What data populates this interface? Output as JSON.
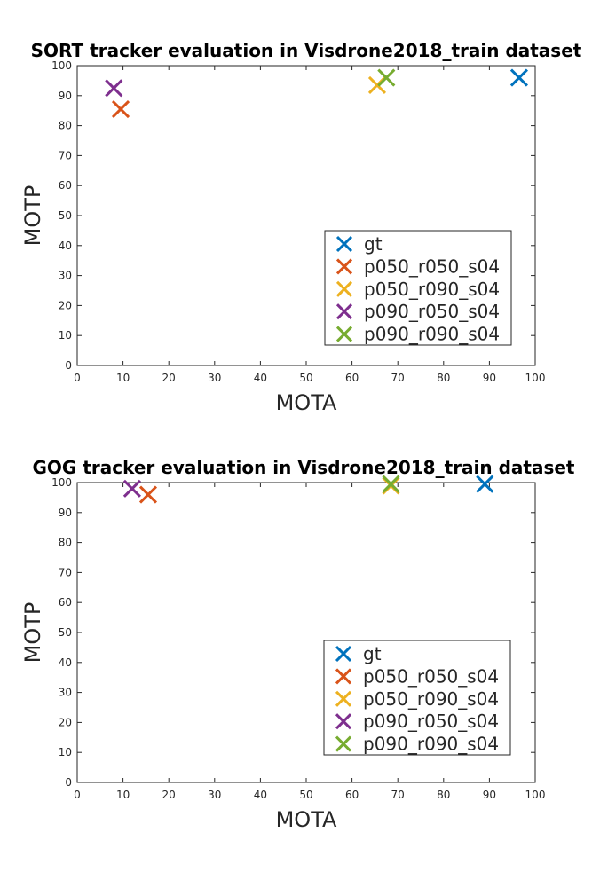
{
  "chart_data": [
    {
      "type": "scatter",
      "title": "SORT tracker evaluation in Visdrone2018_train dataset",
      "xlabel": "MOTA",
      "ylabel": "MOTP",
      "xlim": [
        0,
        100
      ],
      "ylim": [
        0,
        100
      ],
      "xticks": [
        "0",
        "10",
        "20",
        "30",
        "40",
        "50",
        "60",
        "70",
        "80",
        "90",
        "100"
      ],
      "yticks": [
        "0",
        "10",
        "20",
        "30",
        "40",
        "50",
        "60",
        "70",
        "80",
        "90",
        "100"
      ],
      "grid": false,
      "legend_position": "lower-right",
      "series": [
        {
          "name": "gt",
          "color": "#0072BD",
          "x": [
            96.5
          ],
          "y": [
            96
          ]
        },
        {
          "name": "p050_r050_s04",
          "color": "#D95319",
          "x": [
            9.5
          ],
          "y": [
            85.5
          ]
        },
        {
          "name": "p050_r090_s04",
          "color": "#EDB120",
          "x": [
            65.5
          ],
          "y": [
            93.5
          ]
        },
        {
          "name": "p090_r050_s04",
          "color": "#7E2F8E",
          "x": [
            8
          ],
          "y": [
            92.5
          ]
        },
        {
          "name": "p090_r090_s04",
          "color": "#77AC30",
          "x": [
            67.5
          ],
          "y": [
            96
          ]
        }
      ]
    },
    {
      "type": "scatter",
      "title": "GOG tracker evaluation in Visdrone2018_train dataset",
      "xlabel": "MOTA",
      "ylabel": "MOTP",
      "xlim": [
        0,
        100
      ],
      "ylim": [
        0,
        100
      ],
      "xticks": [
        "0",
        "10",
        "20",
        "30",
        "40",
        "50",
        "60",
        "70",
        "80",
        "90",
        "100"
      ],
      "yticks": [
        "0",
        "10",
        "20",
        "30",
        "40",
        "50",
        "60",
        "70",
        "80",
        "90",
        "100"
      ],
      "grid": false,
      "legend_position": "lower-right",
      "series": [
        {
          "name": "gt",
          "color": "#0072BD",
          "x": [
            89
          ],
          "y": [
            99.5
          ]
        },
        {
          "name": "p050_r050_s04",
          "color": "#D95319",
          "x": [
            15.5
          ],
          "y": [
            96
          ]
        },
        {
          "name": "p050_r090_s04",
          "color": "#EDB120",
          "x": [
            68.5
          ],
          "y": [
            99
          ]
        },
        {
          "name": "p090_r050_s04",
          "color": "#7E2F8E",
          "x": [
            12
          ],
          "y": [
            98
          ]
        },
        {
          "name": "p090_r090_s04",
          "color": "#77AC30",
          "x": [
            68.5
          ],
          "y": [
            99.5
          ]
        }
      ]
    }
  ]
}
